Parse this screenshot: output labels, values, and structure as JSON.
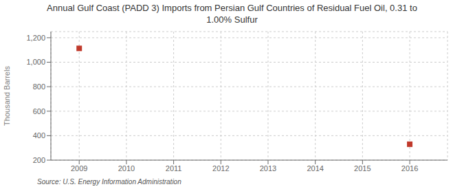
{
  "chart_data": {
    "type": "scatter",
    "title": "Annual Gulf Coast (PADD 3) Imports from Persian Gulf Countries of Residual Fuel Oil, 0.31 to\n1.00% Sulfur",
    "ylabel": "Thousand Barrels",
    "source": "Source: U.S. Energy Information Administration",
    "x": [
      2009,
      2016
    ],
    "values": [
      1113,
      330
    ],
    "color": "#c0392b",
    "marker": "square",
    "xlim": [
      2008.4,
      2016.8
    ],
    "ylim": [
      200,
      1250
    ],
    "xticks": [
      2009,
      2010,
      2011,
      2012,
      2013,
      2014,
      2015,
      2016
    ],
    "yticks": [
      200,
      400,
      600,
      800,
      {
        "value": 1000,
        "label": "1,000"
      },
      {
        "value": 1200,
        "label": "1,200"
      }
    ],
    "grid": true
  }
}
